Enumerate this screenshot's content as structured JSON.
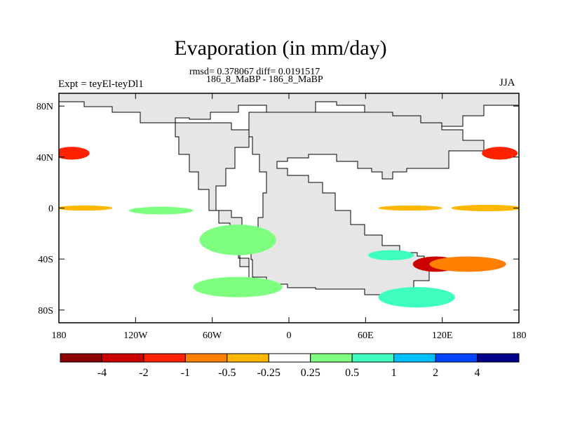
{
  "title": "Evaporation (in mm/day)",
  "stats_line": "rmsd= 0.378067 diff= 0.0191517",
  "experiment_names": "186_8_MaBP - 186_8_MaBP",
  "expt_label": "Expt = teyEl-teyDl1",
  "season": "JJA",
  "colors": {
    "land": "#e6e6e6",
    "palette": [
      "#8b0000",
      "#cd0000",
      "#ff2200",
      "#ff7f00",
      "#ffb700",
      "#e6e6e6",
      "#7fff7f",
      "#3fffbf",
      "#00bfff",
      "#0043ff",
      "#00008b"
    ]
  },
  "chart_data": {
    "type": "heatmap",
    "map": "lat-lon contour map of evaporation difference",
    "xlim": [
      -180,
      180
    ],
    "ylim": [
      -90,
      90
    ],
    "xticks": [
      {
        "value": -180,
        "label": "180"
      },
      {
        "value": -120,
        "label": "120W"
      },
      {
        "value": -60,
        "label": "60W"
      },
      {
        "value": 0,
        "label": "0"
      },
      {
        "value": 60,
        "label": "60E"
      },
      {
        "value": 120,
        "label": "120E"
      },
      {
        "value": 180,
        "label": "180"
      }
    ],
    "yticks": [
      {
        "value": 80,
        "label": "80N"
      },
      {
        "value": 40,
        "label": "40N"
      },
      {
        "value": 0,
        "label": "0"
      },
      {
        "value": -40,
        "label": "40S"
      },
      {
        "value": -80,
        "label": "80S"
      }
    ],
    "colorbar": {
      "levels": [
        "-4",
        "-2",
        "-1",
        "-0.5",
        "-0.25",
        "0.25",
        "0.5",
        "1",
        "2",
        "4"
      ],
      "colors": [
        "#8b0000",
        "#cd0000",
        "#ff2200",
        "#ff7f00",
        "#ffb700",
        "#ffffff",
        "#7fff7f",
        "#3fffbf",
        "#00bfff",
        "#0043ff",
        "#00008b"
      ]
    },
    "features": [
      {
        "lon": 155,
        "lat": 0,
        "dlon": 28,
        "dlat": 2.5,
        "value": -0.4
      },
      {
        "lon": 95,
        "lat": 0,
        "dlon": 25,
        "dlat": 2,
        "value": -0.4
      },
      {
        "lon": -160,
        "lat": 0,
        "dlon": 22,
        "dlat": 2,
        "value": -0.4
      },
      {
        "lon": -100,
        "lat": -2,
        "dlon": 25,
        "dlat": 3,
        "value": 0.3
      },
      {
        "lon": -40,
        "lat": -25,
        "dlon": 30,
        "dlat": 12,
        "value": 0.3
      },
      {
        "lon": -40,
        "lat": -62,
        "dlon": 35,
        "dlat": 8,
        "value": 0.3
      },
      {
        "lon": 115,
        "lat": -44,
        "dlon": 18,
        "dlat": 6,
        "value": -3
      },
      {
        "lon": 140,
        "lat": -44,
        "dlon": 30,
        "dlat": 6,
        "value": -0.7
      },
      {
        "lon": 80,
        "lat": -37,
        "dlon": 18,
        "dlat": 4,
        "value": 0.8
      },
      {
        "lon": 100,
        "lat": -70,
        "dlon": 30,
        "dlat": 8,
        "value": 0.6
      },
      {
        "lon": 165,
        "lat": 43,
        "dlon": 14,
        "dlat": 5,
        "value": -1.2
      },
      {
        "lon": -170,
        "lat": 43,
        "dlon": 14,
        "dlat": 5,
        "value": -1.2
      }
    ]
  }
}
